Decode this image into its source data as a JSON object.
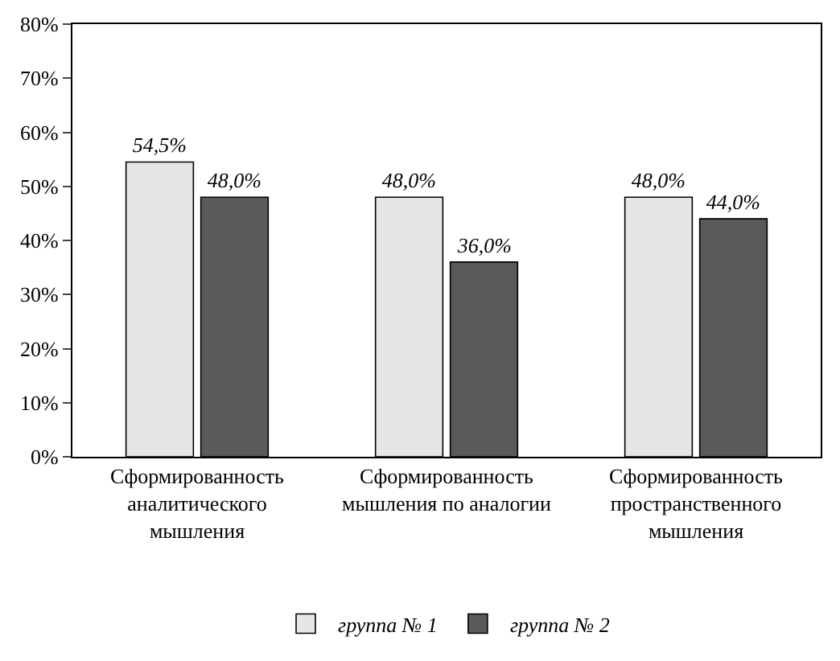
{
  "chart_data": {
    "type": "bar",
    "categories": [
      "Сформированность\nаналитического\nмышления",
      "Сформированность\nмышления по аналогии",
      "Сформированность\nпространственного\nмышления"
    ],
    "series": [
      {
        "name": "группа № 1",
        "color": "#e6e6e6",
        "values": [
          54.5,
          48.0,
          48.0
        ],
        "value_labels": [
          "54,5%",
          "48,0%",
          "48,0%"
        ]
      },
      {
        "name": "группа № 2",
        "color": "#5a5a5a",
        "values": [
          48.0,
          36.0,
          44.0
        ],
        "value_labels": [
          "48,0%",
          "36,0%",
          "44,0%"
        ]
      }
    ],
    "ylim": [
      0,
      80
    ],
    "yticks": [
      {
        "value": 0,
        "label": "0%"
      },
      {
        "value": 10,
        "label": "10%"
      },
      {
        "value": 20,
        "label": "20%"
      },
      {
        "value": 30,
        "label": "30%"
      },
      {
        "value": 40,
        "label": "40%"
      },
      {
        "value": 50,
        "label": "50%"
      },
      {
        "value": 60,
        "label": "60%"
      },
      {
        "value": 70,
        "label": "70%"
      },
      {
        "value": 80,
        "label": "80%"
      }
    ],
    "legend": "bottom"
  }
}
